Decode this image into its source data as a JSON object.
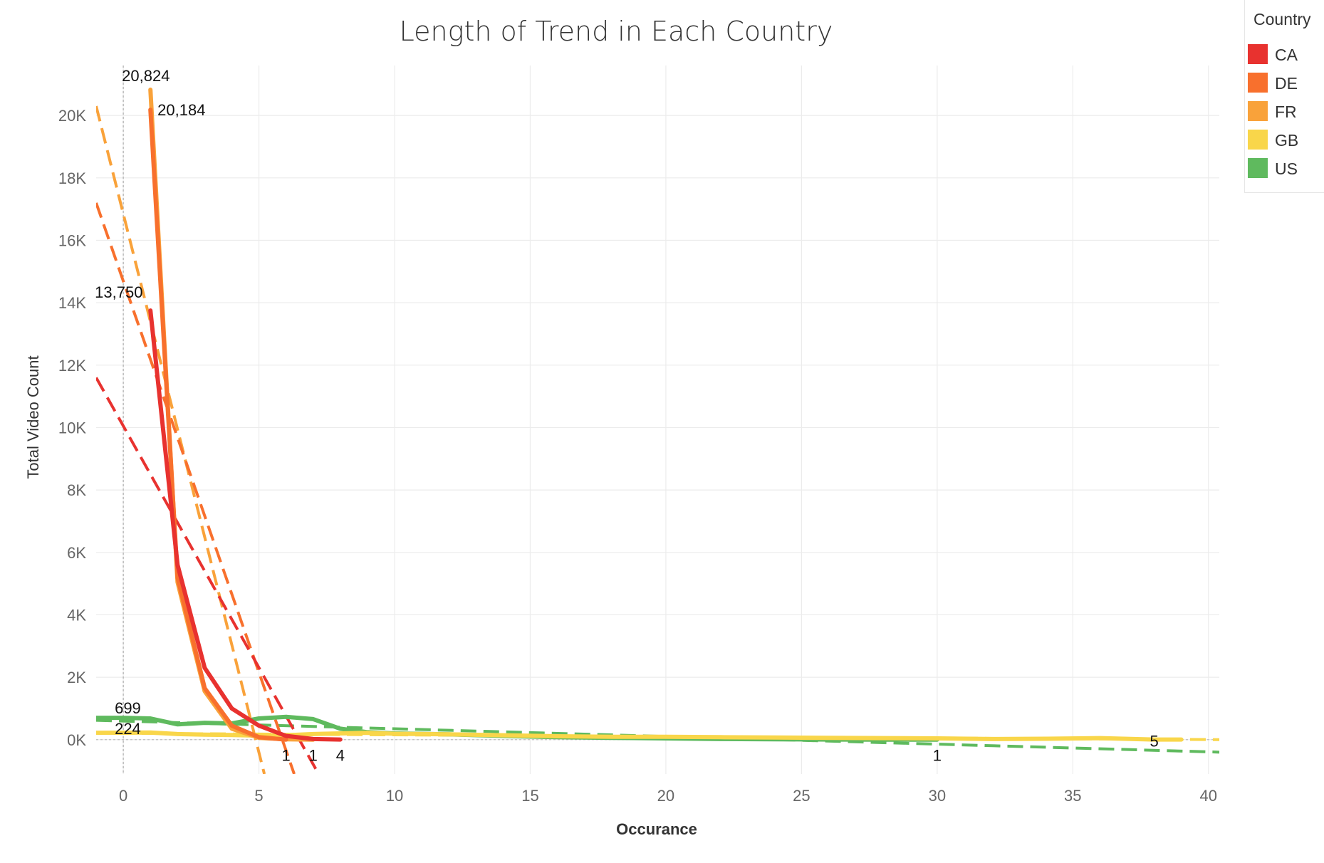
{
  "chart_data": {
    "type": "line",
    "title": "Length of Trend in Each Country",
    "xlabel": "Occurance",
    "ylabel": "Total Video Count",
    "xlim": [
      -1,
      40.4
    ],
    "ylim": [
      -1100,
      21600
    ],
    "x_ticks": [
      0,
      5,
      10,
      15,
      20,
      25,
      30,
      35,
      40
    ],
    "y_ticks": [
      0,
      2000,
      4000,
      6000,
      8000,
      10000,
      12000,
      14000,
      16000,
      18000,
      20000
    ],
    "y_tick_labels": [
      "0K",
      "2K",
      "4K",
      "6K",
      "8K",
      "10K",
      "12K",
      "14K",
      "16K",
      "18K",
      "20K"
    ],
    "grid": true,
    "legend": {
      "title": "Country",
      "position": "top-right"
    },
    "series": [
      {
        "name": "CA",
        "color": "#e8322f",
        "x": [
          1,
          2,
          3,
          4,
          5,
          6,
          7,
          8
        ],
        "y": [
          13750,
          5600,
          2300,
          1000,
          450,
          120,
          20,
          4
        ],
        "trend": {
          "x": [
            -1,
            7.2
          ],
          "y": [
            11600,
            -1100
          ]
        }
      },
      {
        "name": "DE",
        "color": "#f8702d",
        "x": [
          1,
          2,
          3,
          4,
          5,
          6
        ],
        "y": [
          20184,
          5200,
          1650,
          450,
          80,
          1
        ],
        "trend": {
          "x": [
            -1,
            6.3
          ],
          "y": [
            17200,
            -1100
          ]
        }
      },
      {
        "name": "FR",
        "color": "#f9a23a",
        "x": [
          1,
          2,
          3,
          4,
          5,
          6,
          7
        ],
        "y": [
          20824,
          5050,
          1550,
          350,
          60,
          10,
          1
        ],
        "trend": {
          "x": [
            -1,
            5.2
          ],
          "y": [
            20300,
            -1100
          ]
        }
      },
      {
        "name": "GB",
        "color": "#f9d64a",
        "x": [
          -1,
          0,
          1,
          2,
          3,
          4,
          5,
          6,
          7,
          8,
          9,
          10,
          12,
          14,
          16,
          18,
          20,
          22,
          24,
          26,
          28,
          30,
          32,
          34,
          36,
          38,
          39
        ],
        "y": [
          220,
          224,
          230,
          180,
          160,
          150,
          130,
          140,
          180,
          200,
          220,
          190,
          170,
          140,
          110,
          90,
          90,
          80,
          70,
          60,
          50,
          40,
          20,
          30,
          50,
          5,
          5
        ],
        "trend": {
          "x": [
            -1,
            40.4
          ],
          "y": [
            210,
            0
          ]
        }
      },
      {
        "name": "US",
        "color": "#5fba5e",
        "x": [
          -1,
          0,
          1,
          2,
          3,
          4,
          5,
          6,
          7,
          8,
          9,
          10,
          12,
          14,
          16,
          18,
          20,
          22,
          24,
          26,
          28,
          30
        ],
        "y": [
          700,
          699,
          680,
          490,
          540,
          520,
          680,
          730,
          660,
          350,
          240,
          200,
          170,
          120,
          80,
          60,
          40,
          20,
          10,
          5,
          2,
          1
        ],
        "trend": {
          "x": [
            -1,
            40.4
          ],
          "y": [
            620,
            -400
          ]
        }
      }
    ],
    "annotations": [
      {
        "text": "20,824",
        "x": 1,
        "y": 20824
      },
      {
        "text": "20,184",
        "x": 1,
        "y": 20184
      },
      {
        "text": "13,750",
        "x": 1,
        "y": 13750
      },
      {
        "text": "699",
        "x": 0,
        "y": 699
      },
      {
        "text": "224",
        "x": 0,
        "y": 224
      },
      {
        "text": "1",
        "x": 6,
        "y": 1
      },
      {
        "text": "1",
        "x": 7,
        "y": 1
      },
      {
        "text": "4",
        "x": 8,
        "y": 4
      },
      {
        "text": "1",
        "x": 30,
        "y": 1
      },
      {
        "text": "5",
        "x": 38,
        "y": 5
      }
    ]
  }
}
